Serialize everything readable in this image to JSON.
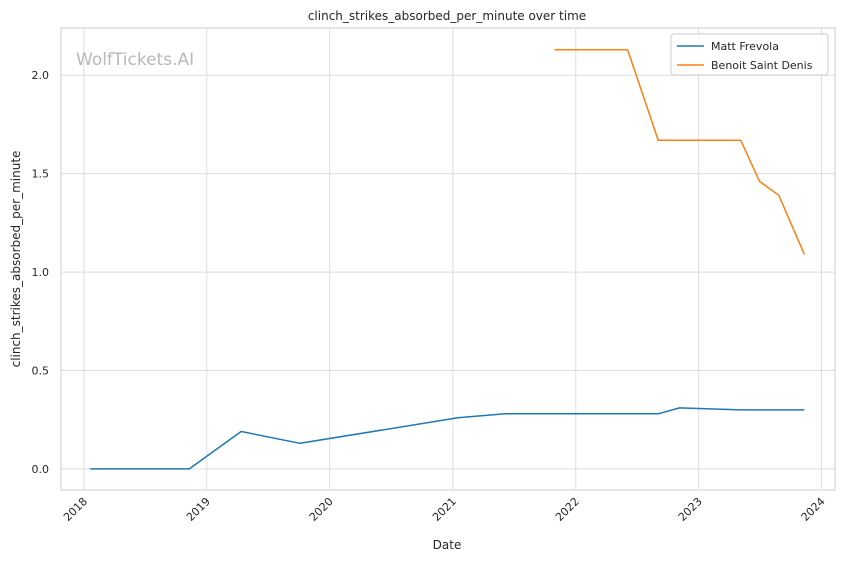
{
  "chart_data": {
    "type": "line",
    "title": "clinch_strikes_absorbed_per_minute over time",
    "xlabel": "Date",
    "ylabel": "clinch_strikes_absorbed_per_minute",
    "watermark": "WolfTickets.AI",
    "xlim": [
      "2017-10-25",
      "2024-02-10"
    ],
    "ylim": [
      -0.107,
      2.24
    ],
    "x_ticks": [
      "2018-01-01",
      "2019-01-01",
      "2020-01-01",
      "2021-01-01",
      "2022-01-01",
      "2023-01-01",
      "2024-01-01"
    ],
    "x_tick_labels": [
      "2018",
      "2019",
      "2020",
      "2021",
      "2022",
      "2023",
      "2024"
    ],
    "y_ticks": [
      0.0,
      0.5,
      1.0,
      1.5,
      2.0
    ],
    "y_tick_labels": [
      "0.0",
      "0.5",
      "1.0",
      "1.5",
      "2.0"
    ],
    "grid": true,
    "legend_position": "top-right",
    "series": [
      {
        "name": "Matt Frevola",
        "color": "#1f77b4",
        "points": [
          [
            "2018-01-20",
            0.0
          ],
          [
            "2018-11-10",
            0.0
          ],
          [
            "2019-04-13",
            0.19
          ],
          [
            "2019-10-05",
            0.13
          ],
          [
            "2021-01-16",
            0.26
          ],
          [
            "2021-06-05",
            0.28
          ],
          [
            "2022-09-03",
            0.28
          ],
          [
            "2022-11-05",
            0.31
          ],
          [
            "2023-05-06",
            0.3
          ],
          [
            "2023-11-11",
            0.3
          ]
        ]
      },
      {
        "name": "Benoit Saint Denis",
        "color": "#ff7f0e",
        "points": [
          [
            "2021-10-30",
            2.13
          ],
          [
            "2022-06-04",
            2.13
          ],
          [
            "2022-09-03",
            1.67
          ],
          [
            "2023-05-06",
            1.67
          ],
          [
            "2023-07-01",
            1.46
          ],
          [
            "2023-08-27",
            1.39
          ],
          [
            "2023-11-11",
            1.09
          ]
        ]
      }
    ]
  }
}
